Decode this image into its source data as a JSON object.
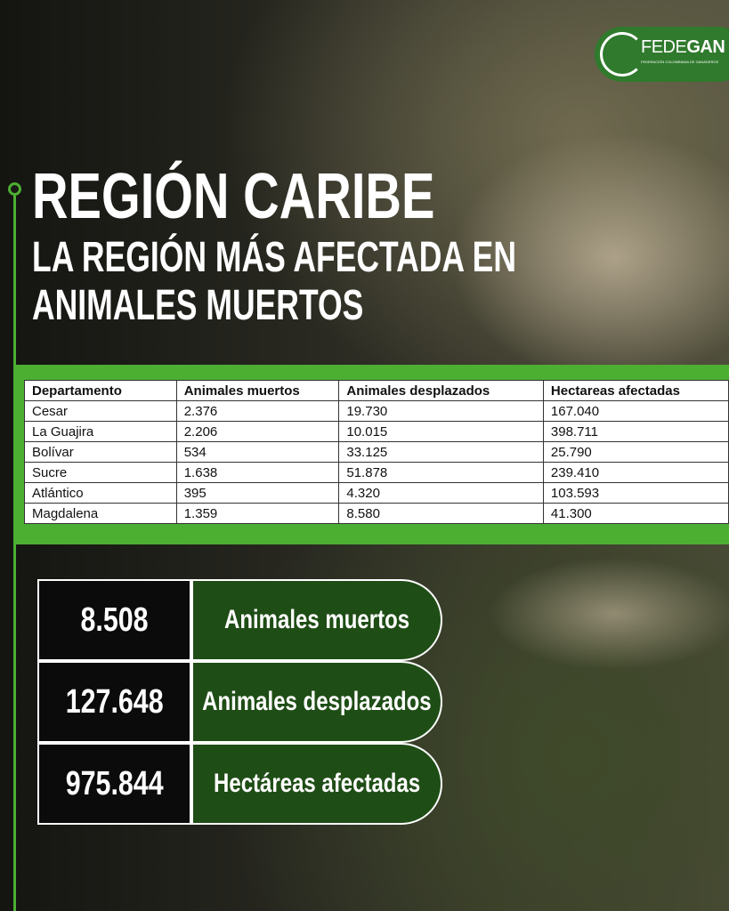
{
  "logo": {
    "name_light": "FEDE",
    "name_bold": "GAN",
    "tagline": "FEDERACIÓN COLOMBIANA DE GANADEROS"
  },
  "header": {
    "title": "REGIÓN CARIBE",
    "subtitle_lines": [
      "LA REGIÓN MÁS AFECTADA EN",
      "ANIMALES MUERTOS"
    ]
  },
  "table": {
    "columns": [
      "Departamento",
      "Animales muertos",
      "Animales desplazados",
      "Hectareas afectadas"
    ],
    "rows": [
      [
        "Cesar",
        "2.376",
        "19.730",
        "167.040"
      ],
      [
        "La Guajira",
        "2.206",
        "10.015",
        "398.711"
      ],
      [
        "Bolívar",
        "534",
        "33.125",
        "25.790"
      ],
      [
        "Sucre",
        "1.638",
        "51.878",
        "239.410"
      ],
      [
        "Atlántico",
        "395",
        "4.320",
        "103.593"
      ],
      [
        "Magdalena",
        "1.359",
        "8.580",
        "41.300"
      ]
    ]
  },
  "summary": [
    {
      "value": "8.508",
      "label": "Animales muertos"
    },
    {
      "value": "127.648",
      "label": "Animales desplazados"
    },
    {
      "value": "975.844",
      "label": "Hectáreas afectadas"
    }
  ]
}
